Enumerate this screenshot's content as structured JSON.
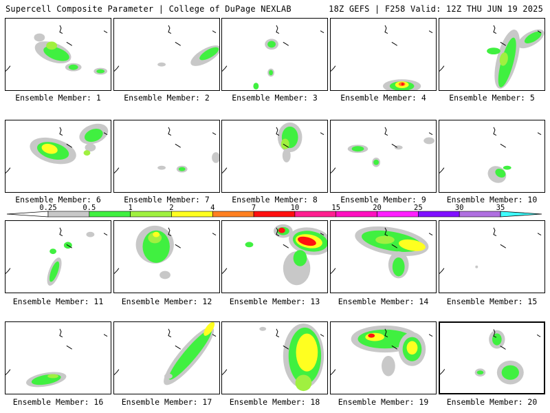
{
  "header": {
    "left": "Supercell Composite Parameter | College of DuPage NEXLAB",
    "right": "18Z GEFS | F258 Valid: 12Z THU JUN 19 2025"
  },
  "scale": {
    "labels": [
      "0.25",
      "0.5",
      "1",
      "2",
      "4",
      "7",
      "10",
      "15",
      "20",
      "25",
      "30",
      "35"
    ],
    "colors": [
      "#ffffff",
      "#c8c8c8",
      "#40f040",
      "#a0f040",
      "#ffff20",
      "#ff8020",
      "#ff1010",
      "#ff2090",
      "#ff10c0",
      "#ff20ff",
      "#8010ff",
      "#b070e0",
      "#40ffff"
    ]
  },
  "panels": [
    {
      "label": "Ensemble Member: 1"
    },
    {
      "label": "Ensemble Member: 2"
    },
    {
      "label": "Ensemble Member: 3"
    },
    {
      "label": "Ensemble Member: 4"
    },
    {
      "label": "Ensemble Member: 5"
    },
    {
      "label": "Ensemble Member: 6"
    },
    {
      "label": "Ensemble Member: 7"
    },
    {
      "label": "Ensemble Member: 8"
    },
    {
      "label": "Ensemble Member: 9"
    },
    {
      "label": "Ensemble Member: 10"
    },
    {
      "label": "Ensemble Member: 11"
    },
    {
      "label": "Ensemble Member: 12"
    },
    {
      "label": "Ensemble Member: 13"
    },
    {
      "label": "Ensemble Member: 14"
    },
    {
      "label": "Ensemble Member: 15"
    },
    {
      "label": "Ensemble Member: 16"
    },
    {
      "label": "Ensemble Member: 17"
    },
    {
      "label": "Ensemble Member: 18"
    },
    {
      "label": "Ensemble Member: 19"
    },
    {
      "label": "Ensemble Member: 20",
      "selected": true
    }
  ]
}
